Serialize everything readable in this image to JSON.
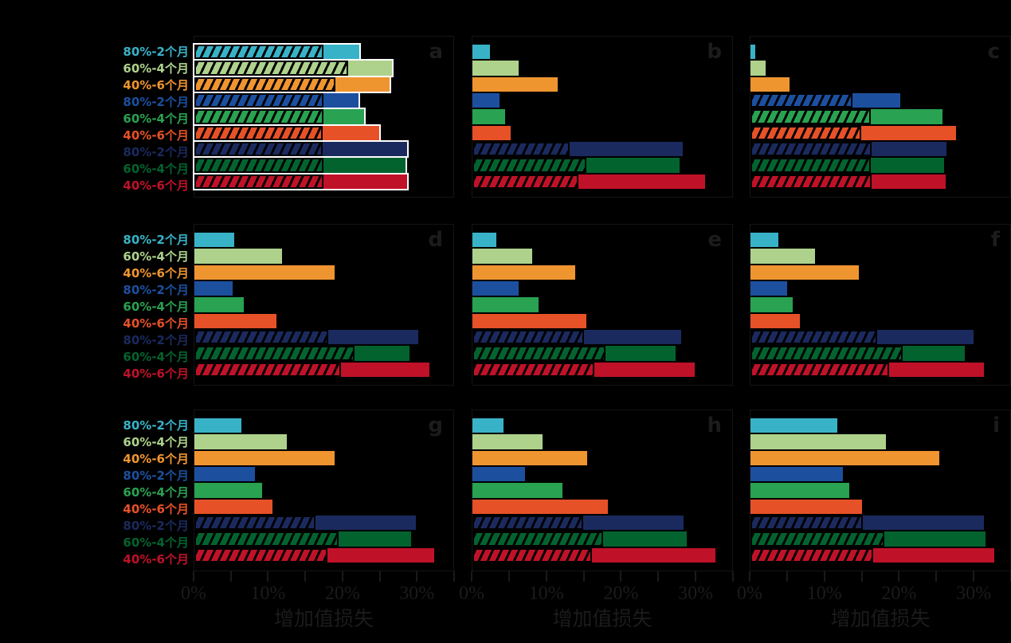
{
  "theme": {
    "background": "#000000",
    "panel_border": "#141414",
    "tick_color": "#1a1a1a",
    "tick_label_color": "#1b1b1b",
    "panel_letter_color": "#1c1c1c",
    "axis_title_color": "#1b1b1b",
    "highlight_outline": "#ffffff",
    "hatch_color": "#000000"
  },
  "chart_data": {
    "type": "bar",
    "orientation": "horizontal",
    "unit": "percent",
    "grid": false,
    "xlabel": "增加值损失",
    "x_tick_labels": [
      "0%",
      "10%",
      "20%",
      "30%"
    ],
    "x_major_tick_step": 10,
    "x_minor_tick_step": 5,
    "xlim": [
      0,
      35
    ],
    "categories": [
      "80%-2个月",
      "60%-4个月",
      "40%-6个月",
      "80%-2个月",
      "60%-4个月",
      "40%-6个月",
      "80%-2个月",
      "60%-4个月",
      "40%-6个月"
    ],
    "category_colors": [
      "#38b2c7",
      "#aed28c",
      "#ef9530",
      "#1c509f",
      "#29a251",
      "#e65128",
      "#1b2a5e",
      "#03632f",
      "#bf1228"
    ],
    "segments": [
      "hatched",
      "solid"
    ],
    "panels": [
      {
        "label": "a",
        "highlighted": true,
        "hatched": [
          17.4,
          20.8,
          19.1,
          17.4,
          17.4,
          17.3,
          17.3,
          17.4,
          17.4
        ],
        "total": [
          22.3,
          26.7,
          26.4,
          22.2,
          22.9,
          25.0,
          28.7,
          28.5,
          28.7
        ]
      },
      {
        "label": "b",
        "highlighted": false,
        "hatched": [
          0,
          0,
          0,
          0,
          0,
          0,
          13.1,
          15.4,
          14.3
        ],
        "total": [
          2.4,
          6.2,
          11.5,
          3.7,
          4.4,
          5.2,
          28.3,
          27.9,
          31.3
        ]
      },
      {
        "label": "c",
        "highlighted": false,
        "hatched": [
          0,
          0,
          0,
          13.7,
          16.2,
          14.9,
          16.3,
          16.2,
          16.3
        ],
        "total": [
          0.6,
          2.0,
          5.3,
          20.2,
          25.9,
          27.7,
          26.4,
          26.1,
          26.3
        ]
      },
      {
        "label": "d",
        "highlighted": false,
        "hatched": [
          0,
          0,
          0,
          0,
          0,
          0,
          18.1,
          21.6,
          19.8
        ],
        "total": [
          5.4,
          11.8,
          18.9,
          5.2,
          6.7,
          11.1,
          30.3,
          29.1,
          31.8
        ]
      },
      {
        "label": "e",
        "highlighted": false,
        "hatched": [
          0,
          0,
          0,
          0,
          0,
          0,
          15.0,
          17.9,
          16.4
        ],
        "total": [
          3.2,
          8.1,
          13.8,
          6.2,
          8.9,
          15.3,
          28.1,
          27.4,
          30.0
        ]
      },
      {
        "label": "f",
        "highlighted": false,
        "hatched": [
          0,
          0,
          0,
          0,
          0,
          0,
          17.1,
          20.5,
          18.7
        ],
        "total": [
          3.8,
          8.7,
          14.6,
          4.9,
          5.7,
          6.7,
          30.1,
          28.9,
          31.5
        ]
      },
      {
        "label": "g",
        "highlighted": false,
        "hatched": [
          0,
          0,
          0,
          0,
          0,
          0,
          16.4,
          19.5,
          18.0
        ],
        "total": [
          6.3,
          12.5,
          18.9,
          8.2,
          9.1,
          10.5,
          29.9,
          29.3,
          32.4
        ]
      },
      {
        "label": "h",
        "highlighted": false,
        "hatched": [
          0,
          0,
          0,
          0,
          0,
          0,
          14.9,
          17.6,
          16.1
        ],
        "total": [
          4.2,
          9.4,
          15.5,
          7.1,
          12.1,
          18.3,
          28.4,
          28.9,
          32.7
        ]
      },
      {
        "label": "i",
        "highlighted": false,
        "hatched": [
          0,
          0,
          0,
          0,
          0,
          0,
          15.1,
          18.0,
          16.5
        ],
        "total": [
          11.7,
          18.3,
          25.4,
          12.5,
          13.3,
          15.0,
          31.5,
          31.7,
          32.8
        ]
      }
    ]
  }
}
